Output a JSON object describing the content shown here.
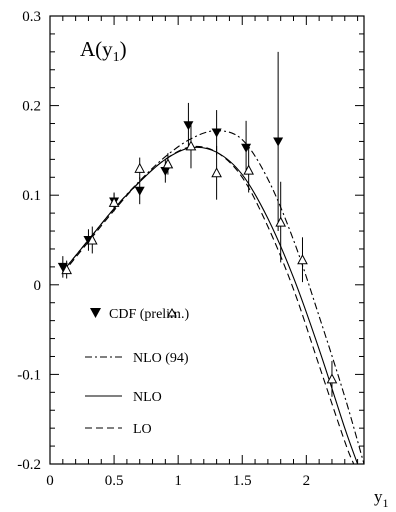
{
  "chart_data": {
    "type": "line",
    "title": "A(y₁)",
    "title_main": "A(y",
    "title_sub": "1",
    "title_close": ")",
    "xlabel": "y",
    "xlabel_sub": "1",
    "ylabel": "",
    "xlim": [
      0,
      2.45
    ],
    "ylim": [
      -0.2,
      0.3
    ],
    "x_ticks": [
      0,
      0.5,
      1,
      1.5,
      2
    ],
    "x_tick_labels": [
      "0",
      "0.5",
      "1",
      "1.5",
      "2"
    ],
    "y_ticks": [
      -0.2,
      -0.1,
      0,
      0.1,
      0.2,
      0.3
    ],
    "y_tick_labels": [
      "-0.2",
      "-0.1",
      "0",
      "0.1",
      "0.2",
      "0.3"
    ],
    "grid": false,
    "legend_placement": "bottom-left",
    "series": [
      {
        "name": "NLO (94)",
        "style": "dash-dot",
        "x": [
          0.1,
          0.3,
          0.5,
          0.7,
          0.9,
          1.1,
          1.3,
          1.5,
          1.7,
          1.9,
          2.1,
          2.3,
          2.45
        ],
        "y": [
          0.015,
          0.05,
          0.085,
          0.116,
          0.143,
          0.163,
          0.172,
          0.162,
          0.118,
          0.05,
          -0.035,
          -0.125,
          -0.2
        ]
      },
      {
        "name": "NLO",
        "style": "solid",
        "x": [
          0.1,
          0.3,
          0.5,
          0.7,
          0.9,
          1.1,
          1.3,
          1.5,
          1.7,
          1.9,
          2.1,
          2.3,
          2.4
        ],
        "y": [
          0.015,
          0.05,
          0.085,
          0.115,
          0.14,
          0.153,
          0.148,
          0.123,
          0.074,
          0.008,
          -0.072,
          -0.16,
          -0.2
        ]
      },
      {
        "name": "LO",
        "style": "dashed",
        "x": [
          0.1,
          0.3,
          0.5,
          0.7,
          0.9,
          1.1,
          1.3,
          1.5,
          1.7,
          1.9,
          2.1,
          2.3,
          2.37
        ],
        "y": [
          0.013,
          0.048,
          0.083,
          0.115,
          0.14,
          0.154,
          0.148,
          0.12,
          0.065,
          -0.005,
          -0.09,
          -0.175,
          -0.2
        ]
      },
      {
        "name": "CDF",
        "marker": "filled-down-triangle",
        "x": [
          0.1,
          0.3,
          0.5,
          0.7,
          0.9,
          1.08,
          1.3,
          1.53,
          1.78
        ],
        "y": [
          0.02,
          0.05,
          0.093,
          0.105,
          0.127,
          0.178,
          0.17,
          0.153,
          0.16
        ],
        "err": [
          0.012,
          0.012,
          0.01,
          0.015,
          0.013,
          0.025,
          0.025,
          0.03,
          0.1
        ]
      },
      {
        "name": "prelim.",
        "marker": "open-up-triangle",
        "x": [
          0.13,
          0.33,
          0.5,
          0.7,
          0.92,
          1.1,
          1.3,
          1.55,
          1.8,
          1.97,
          2.2
        ],
        "y": [
          0.017,
          0.05,
          0.092,
          0.13,
          0.135,
          0.155,
          0.125,
          0.128,
          0.07,
          0.028,
          -0.105
        ],
        "err": [
          0.01,
          0.015,
          0.01,
          0.012,
          0.012,
          0.025,
          0.03,
          0.025,
          0.045,
          0.025,
          0.02
        ]
      }
    ],
    "legend": {
      "cdf_label": "CDF (",
      "prelim_label": "prelim.)",
      "nlo94_label": "NLO (94)",
      "nlo_label": "NLO",
      "lo_label": "LO"
    }
  }
}
